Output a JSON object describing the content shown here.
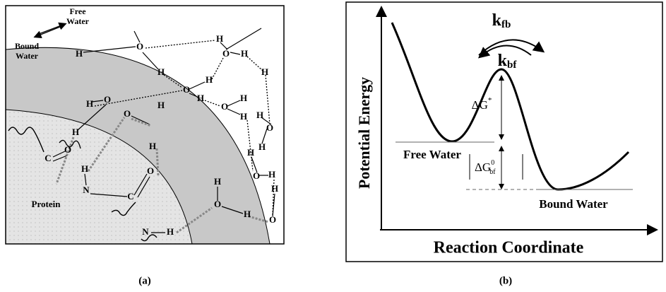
{
  "panel_a": {
    "free_water": [
      "Free",
      "Water"
    ],
    "bound_water": [
      "Bound",
      "Water"
    ],
    "protein": "Protein",
    "atoms": [
      "H",
      "O",
      "H",
      "H",
      "O",
      "H",
      "H",
      "O",
      "H",
      "H",
      "H",
      "O",
      "H",
      "H",
      "O",
      "H",
      "H",
      "H",
      "O",
      "H",
      "H",
      "O",
      "H",
      "H",
      "O",
      "H",
      "O",
      "C",
      "O",
      "H",
      "N",
      "C",
      "O",
      "N",
      "H",
      "H",
      "O",
      "H"
    ],
    "caption": "(a)"
  },
  "panel_b": {
    "k_fb": {
      "base": "k",
      "sub": "fb"
    },
    "k_bf": {
      "base": "k",
      "sub": "bf"
    },
    "delta_g_barrier": {
      "symbol": "ΔG",
      "sup": "*"
    },
    "free_water": "Free Water",
    "delta_g_binding": {
      "symbol": "ΔG",
      "sup": "0",
      "sub": "bf"
    },
    "bound_water": "Bound Water",
    "y_axis_label": "Potential Energy",
    "x_axis_label": "Reaction Coordinate",
    "caption": "(b)"
  }
}
